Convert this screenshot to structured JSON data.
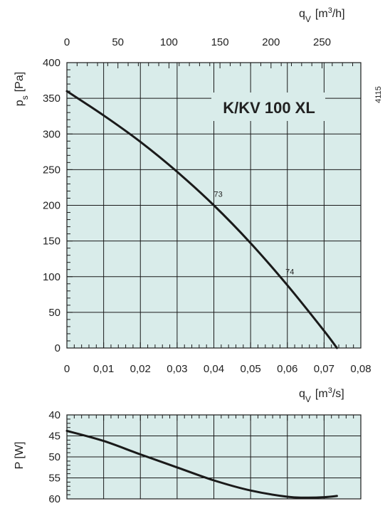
{
  "chart_data": [
    {
      "type": "line",
      "title_box": "K/KV 100 XL",
      "figure_code": "4115",
      "x": {
        "label_main": "q",
        "label_sub": "V",
        "label_unit_pre": "[m",
        "label_unit_sup": "3",
        "label_unit_post": "/s]",
        "range": [
          0,
          0.08
        ],
        "ticks": [
          "0",
          "0,01",
          "0,02",
          "0,03",
          "0,04",
          "0,05",
          "0,06",
          "0,07",
          "0,08"
        ]
      },
      "x_top": {
        "label_main": "q",
        "label_sub": "V",
        "label_unit_pre": "[m",
        "label_unit_sup": "3",
        "label_unit_post": "/h]",
        "ticks": [
          "0",
          "50",
          "100",
          "150",
          "200",
          "250"
        ],
        "values": [
          0,
          50,
          100,
          150,
          200,
          250
        ]
      },
      "y": {
        "label_main": "p",
        "label_sub": "s",
        "label_unit": "[Pa]",
        "range": [
          0,
          400
        ],
        "ticks": [
          "0",
          "50",
          "100",
          "150",
          "200",
          "250",
          "300",
          "350",
          "400"
        ]
      },
      "series": [
        {
          "x": [
            0,
            0.01,
            0.02,
            0.03,
            0.04,
            0.05,
            0.06,
            0.07,
            0.0735
          ],
          "y": [
            360,
            326,
            289,
            247,
            200,
            147,
            88,
            24,
            0
          ]
        }
      ],
      "annotations": [
        {
          "text": "73",
          "x": 0.04,
          "y": 212
        },
        {
          "text": "74",
          "x": 0.0595,
          "y": 103
        }
      ]
    },
    {
      "type": "line",
      "y": {
        "label_main": "P [W]",
        "range": [
          40,
          60
        ],
        "ticks": [
          "40",
          "45",
          "50",
          "55",
          "60"
        ],
        "inverted": true
      },
      "x": {
        "range": [
          0,
          0.08
        ]
      },
      "series": [
        {
          "x": [
            0,
            0.01,
            0.02,
            0.03,
            0.04,
            0.05,
            0.06,
            0.065,
            0.07,
            0.0735
          ],
          "y": [
            43.8,
            46.2,
            49.4,
            52.5,
            55.6,
            58.0,
            59.5,
            59.7,
            59.6,
            59.3
          ]
        }
      ]
    }
  ]
}
